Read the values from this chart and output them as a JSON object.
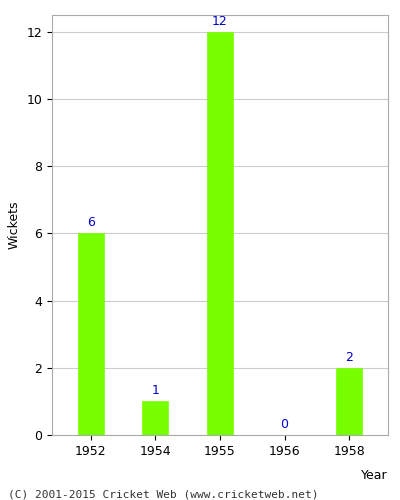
{
  "years": [
    "1952",
    "1954",
    "1955",
    "1956",
    "1958"
  ],
  "values": [
    6,
    1,
    12,
    0,
    2
  ],
  "bar_color": "#77ff00",
  "bar_edge_color": "#77ff00",
  "label_color": "#0000cc",
  "xlabel": "Year",
  "ylabel": "Wickets",
  "ylim": [
    0,
    12
  ],
  "yticks": [
    0,
    2,
    4,
    6,
    8,
    10,
    12
  ],
  "background_color": "#ffffff",
  "footer_text": "(C) 2001-2015 Cricket Web (www.cricketweb.net)",
  "label_fontsize": 9,
  "axis_fontsize": 9,
  "footer_fontsize": 8,
  "bar_width": 0.4
}
